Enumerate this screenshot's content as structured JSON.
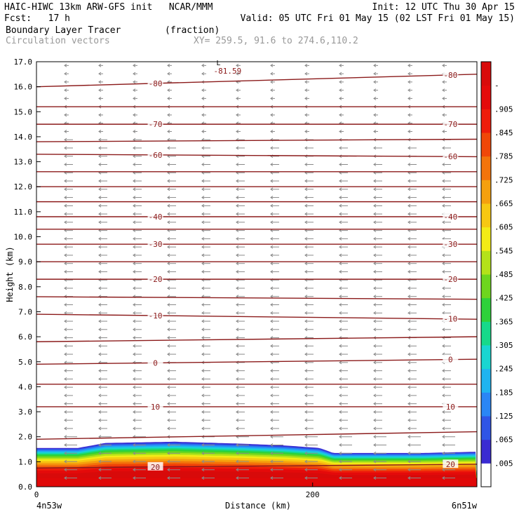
{
  "header": {
    "model": "HAIC-HIWC 13km ARW-GFS init",
    "org": "NCAR/MMM",
    "init": "Init: 12 UTC Thu 30 Apr 15",
    "fcst_label": "Fcst:",
    "fcst_value": "17 h",
    "valid": "Valid: 05 UTC Fri 01 May 15 (02 LST Fri 01 May 15)",
    "field": "Boundary Layer Tracer",
    "field_units": "(fraction)",
    "vectors": "Circulation vectors",
    "xy": "XY= 259.5, 91.6 to 274.6,110.2"
  },
  "chart_data": {
    "type": "heatmap",
    "xlabel": "Distance (km)",
    "ylabel": "Height (km)",
    "xlim": [
      0,
      319
    ],
    "ylim": [
      0,
      17
    ],
    "x_ticks": [
      0,
      200
    ],
    "y_ticks": [
      "0.0",
      "1.0",
      "2.0",
      "3.0",
      "4.0",
      "5.0",
      "6.0",
      "7.0",
      "8.0",
      "9.0",
      "10.0",
      "11.0",
      "12.0",
      "13.0",
      "14.0",
      "15.0",
      "16.0",
      "17.0"
    ],
    "x_end_labels": [
      "4n53w",
      "6n51w"
    ],
    "colorbar": {
      "labels": [
        ".005",
        ".065",
        ".125",
        ".185",
        ".245",
        ".305",
        ".365",
        ".425",
        ".485",
        ".545",
        ".605",
        ".665",
        ".725",
        ".785",
        ".845",
        ".905",
        "-"
      ],
      "colors": [
        "#ffffff",
        "#3a2bd2",
        "#2f55e6",
        "#2a86f5",
        "#1fb4f0",
        "#19d6d1",
        "#17d98a",
        "#2ed23a",
        "#6ed61e",
        "#b4e21a",
        "#f3ec16",
        "#f7c812",
        "#f5a00e",
        "#f3740b",
        "#f04708",
        "#ee1c0a",
        "#e40a0a",
        "#d80a0a"
      ]
    },
    "tracer_profile": {
      "distance_km": [
        0,
        30,
        50,
        100,
        150,
        180,
        205,
        215,
        240,
        280,
        319
      ],
      "top_height_km": [
        1.55,
        1.55,
        1.75,
        1.8,
        1.72,
        1.65,
        1.55,
        1.35,
        1.35,
        1.35,
        1.4
      ]
    },
    "contours": [
      {
        "label": "-80",
        "heights": [
          16.0,
          16.5
        ]
      },
      {
        "label": "",
        "heights": [
          15.2,
          15.2
        ]
      },
      {
        "label": "-70",
        "heights": [
          14.5,
          14.5
        ]
      },
      {
        "label": "",
        "heights": [
          13.8,
          13.9
        ]
      },
      {
        "label": "-60",
        "heights": [
          13.3,
          13.2
        ]
      },
      {
        "label": "",
        "heights": [
          12.6,
          12.6
        ]
      },
      {
        "label": "",
        "heights": [
          12.0,
          12.0
        ]
      },
      {
        "label": "",
        "heights": [
          11.4,
          11.4
        ]
      },
      {
        "label": "-40",
        "heights": [
          10.8,
          10.8
        ]
      },
      {
        "label": "",
        "heights": [
          10.3,
          10.3
        ]
      },
      {
        "label": "-30",
        "heights": [
          9.7,
          9.7
        ]
      },
      {
        "label": "",
        "heights": [
          9.0,
          9.0
        ]
      },
      {
        "label": "-20",
        "heights": [
          8.3,
          8.3
        ]
      },
      {
        "label": "",
        "heights": [
          7.6,
          7.5
        ]
      },
      {
        "label": "-10",
        "heights": [
          6.9,
          6.7
        ]
      },
      {
        "label": "",
        "heights": [
          5.8,
          6.0
        ]
      },
      {
        "label": "0",
        "heights": [
          4.9,
          5.1
        ]
      },
      {
        "label": "",
        "heights": [
          4.1,
          4.1
        ]
      },
      {
        "label": "10",
        "heights": [
          3.2,
          3.2
        ]
      },
      {
        "label": "",
        "heights": [
          1.9,
          2.2
        ]
      },
      {
        "label": "20",
        "heights": [
          0.75,
          0.9
        ]
      }
    ],
    "min_label": {
      "symbol": "L",
      "value": "-81.59",
      "distance_km": 110,
      "height_km": 16.75
    }
  }
}
